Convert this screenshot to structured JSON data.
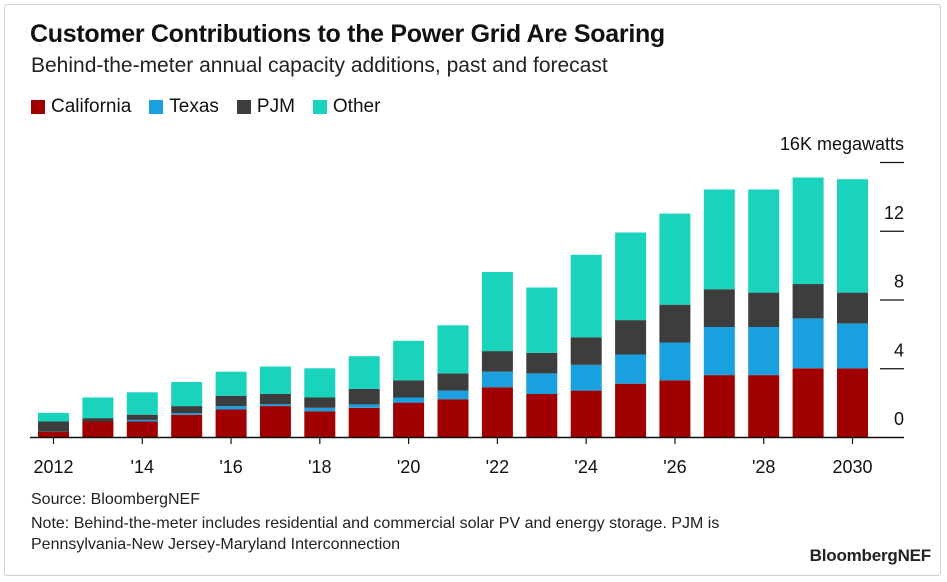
{
  "header": {
    "title": "Customer Contributions to the Power Grid Are Soaring",
    "subtitle": "Behind-the-meter annual capacity additions, past and forecast"
  },
  "footer": {
    "source": "Source: BloombergNEF",
    "note": "Note: Behind-the-meter includes residential and commercial solar PV and energy storage. PJM is Pennsylvania-New Jersey-Maryland Interconnection",
    "brand": "BloombergNEF"
  },
  "colors": {
    "California": "#a10000",
    "Texas": "#1a9fdf",
    "PJM": "#3d3d3d",
    "Other": "#19d3bd"
  },
  "chart_data": {
    "type": "bar",
    "stacked": true,
    "unit_label": "16K megawatts",
    "x": [
      2012,
      2013,
      2014,
      2015,
      2016,
      2017,
      2018,
      2019,
      2020,
      2021,
      2022,
      2023,
      2024,
      2025,
      2026,
      2027,
      2028,
      2029,
      2030
    ],
    "x_tick_labels": [
      "2012",
      "'14",
      "'16",
      "'18",
      "'20",
      "'22",
      "'24",
      "'26",
      "'28",
      "2030"
    ],
    "x_tick_years": [
      2012,
      2014,
      2016,
      2018,
      2020,
      2022,
      2024,
      2026,
      2028,
      2030
    ],
    "y_ticks": [
      0,
      4,
      8,
      12,
      16
    ],
    "y_tick_labels": [
      "0",
      "4",
      "8",
      "12",
      "16K megawatts"
    ],
    "ylim": [
      0,
      16
    ],
    "grid": false,
    "legend_position": "top-left",
    "series": [
      {
        "name": "California",
        "values": [
          0.3,
          0.9,
          0.9,
          1.3,
          1.6,
          1.8,
          1.5,
          1.7,
          2.0,
          2.2,
          2.9,
          2.5,
          2.7,
          3.1,
          3.3,
          3.6,
          3.6,
          4.0,
          4.0
        ]
      },
      {
        "name": "Texas",
        "values": [
          0.0,
          0.0,
          0.1,
          0.1,
          0.2,
          0.1,
          0.2,
          0.2,
          0.3,
          0.5,
          0.9,
          1.2,
          1.5,
          1.7,
          2.2,
          2.8,
          2.8,
          2.9,
          2.6
        ]
      },
      {
        "name": "PJM",
        "values": [
          0.6,
          0.2,
          0.3,
          0.4,
          0.6,
          0.6,
          0.6,
          0.9,
          1.0,
          1.0,
          1.2,
          1.2,
          1.6,
          2.0,
          2.2,
          2.2,
          2.0,
          2.0,
          1.8
        ]
      },
      {
        "name": "Other",
        "values": [
          0.5,
          1.2,
          1.3,
          1.4,
          1.4,
          1.6,
          1.7,
          1.9,
          2.3,
          2.8,
          4.6,
          3.8,
          4.8,
          5.1,
          5.3,
          5.8,
          6.0,
          6.2,
          6.6
        ]
      }
    ]
  }
}
